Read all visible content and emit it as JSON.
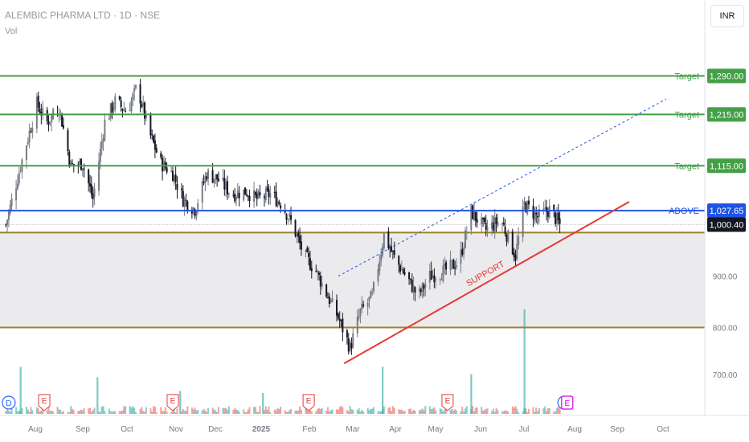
{
  "header": {
    "title": "ALEMBIC PHARMA LTD · 1D · NSE",
    "volume_label": "Vol",
    "currency": "INR"
  },
  "chart_data": {
    "type": "candlestick",
    "symbol": "ALEMBIC PHARMA LTD",
    "interval": "1D",
    "exchange": "NSE",
    "ylim": [
      660,
      1320
    ],
    "y_ticks": [
      700,
      800,
      900
    ],
    "x_ticks": [
      "Aug",
      "Sep",
      "Oct",
      "Nov",
      "Dec",
      "2025",
      "Feb",
      "Mar",
      "Apr",
      "May",
      "Jun",
      "Jul",
      "Aug",
      "Sep",
      "Oct"
    ],
    "last_price": "1,000.40",
    "close_path": [
      [
        "2024-07-15",
        1000
      ],
      [
        "2024-07-25",
        1115
      ],
      [
        "2024-08-05",
        1235
      ],
      [
        "2024-08-12",
        1200
      ],
      [
        "2024-08-20",
        1230
      ],
      [
        "2024-08-28",
        1115
      ],
      [
        "2024-09-05",
        1120
      ],
      [
        "2024-09-12",
        1050
      ],
      [
        "2024-09-20",
        1200
      ],
      [
        "2024-09-27",
        1240
      ],
      [
        "2024-10-05",
        1220
      ],
      [
        "2024-10-12",
        1270
      ],
      [
        "2024-10-20",
        1180
      ],
      [
        "2024-10-28",
        1120
      ],
      [
        "2024-11-05",
        1100
      ],
      [
        "2024-11-12",
        1050
      ],
      [
        "2024-11-20",
        1030
      ],
      [
        "2024-11-28",
        1100
      ],
      [
        "2024-12-05",
        1090
      ],
      [
        "2024-12-15",
        1060
      ],
      [
        "2024-12-25",
        1065
      ],
      [
        "2025-01-01",
        1050
      ],
      [
        "2025-01-10",
        1060
      ],
      [
        "2025-01-18",
        1040
      ],
      [
        "2025-01-25",
        1000
      ],
      [
        "2025-02-02",
        940
      ],
      [
        "2025-02-10",
        910
      ],
      [
        "2025-02-18",
        860
      ],
      [
        "2025-02-25",
        820
      ],
      [
        "2025-03-05",
        760
      ],
      [
        "2025-03-12",
        830
      ],
      [
        "2025-03-20",
        860
      ],
      [
        "2025-03-28",
        980
      ],
      [
        "2025-04-05",
        930
      ],
      [
        "2025-04-12",
        900
      ],
      [
        "2025-04-20",
        860
      ],
      [
        "2025-04-28",
        900
      ],
      [
        "2025-05-08",
        910
      ],
      [
        "2025-05-18",
        930
      ],
      [
        "2025-05-26",
        1025
      ],
      [
        "2025-06-05",
        990
      ],
      [
        "2025-06-15",
        1010
      ],
      [
        "2025-06-25",
        940
      ],
      [
        "2025-07-01",
        1040
      ],
      [
        "2025-07-10",
        1015
      ],
      [
        "2025-07-18",
        1030
      ],
      [
        "2025-07-25",
        1000
      ]
    ],
    "volume_spikes": [
      {
        "date": "2024-07-25",
        "ratio": 0.45
      },
      {
        "date": "2024-09-15",
        "ratio": 0.35
      },
      {
        "date": "2024-11-10",
        "ratio": 0.22
      },
      {
        "date": "2025-01-05",
        "ratio": 0.2
      },
      {
        "date": "2025-03-27",
        "ratio": 0.45
      },
      {
        "date": "2025-05-26",
        "ratio": 0.38
      },
      {
        "date": "2025-07-01",
        "ratio": 1.0
      }
    ],
    "earnings_markers": [
      "2024-08-10",
      "2024-11-05",
      "2025-02-05",
      "2025-05-10"
    ],
    "dividend_markers": [
      "2024-07-17",
      "2025-07-28"
    ],
    "split_markers": [
      "2025-07-30"
    ],
    "levels": [
      {
        "label": "Target",
        "value": "1,290.00",
        "y": 1290,
        "color": "#43a047",
        "badge": "#43a047",
        "style": "solid"
      },
      {
        "label": "Target",
        "value": "1,215.00",
        "y": 1215,
        "color": "#43a047",
        "badge": "#43a047",
        "style": "solid"
      },
      {
        "label": "Target",
        "value": "1,115.00",
        "y": 1115,
        "color": "#43a047",
        "badge": "#43a047",
        "style": "solid"
      },
      {
        "label": "ABOVE",
        "value": "1,027.65",
        "y": 1027.65,
        "color": "#1e53e5",
        "badge": "#1e53e5",
        "style": "solid"
      }
    ],
    "zone": {
      "from": 800,
      "to": 985,
      "edge_color": "#a0822d",
      "fill": "#ebebed"
    },
    "support_line": {
      "label": "SUPPORT",
      "from": [
        "2025-03-01",
        730
      ],
      "to": [
        "2025-09-10",
        1045
      ],
      "color": "#e53935"
    },
    "dashed_channel": {
      "from": [
        "2025-02-25",
        900
      ],
      "to": [
        "2025-10-05",
        1245
      ],
      "color": "#1e53e5"
    },
    "colors": {
      "up": "#787b86",
      "down": "#131722",
      "vol_up": "#26a69a",
      "vol_down": "#ef5350",
      "last_badge": "#131722",
      "grid": "#ffffff"
    }
  }
}
